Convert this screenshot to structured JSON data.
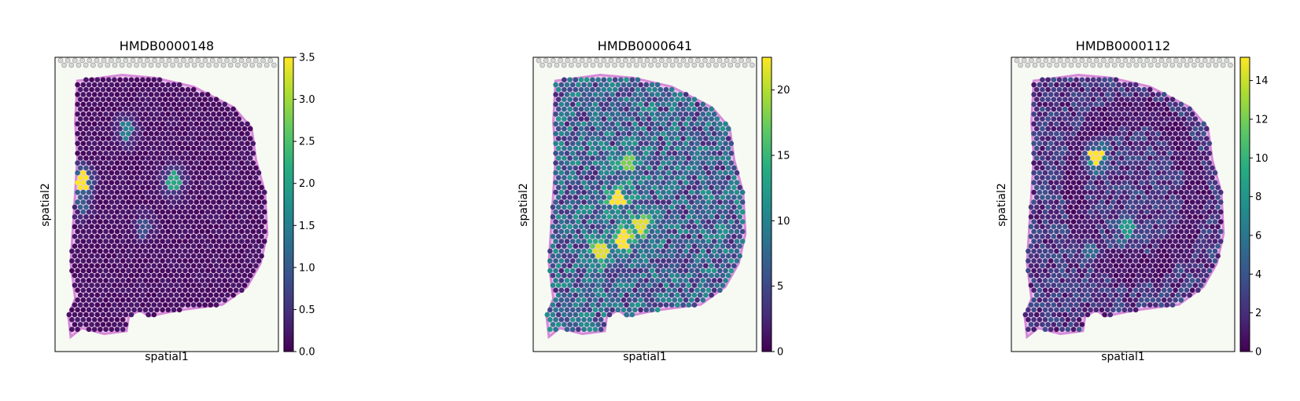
{
  "chart_data": [
    {
      "type": "heatmap",
      "title": "HMDB0000148",
      "xlabel": "spatial1",
      "ylabel": "spatial2",
      "colormap": "viridis",
      "colorbar": {
        "range": [
          0,
          3.5
        ],
        "ticks": [
          "0.0",
          "0.5",
          "1.0",
          "1.5",
          "2.0",
          "2.5",
          "3.0",
          "3.5"
        ]
      },
      "hotspots": [
        [
          0.12,
          0.42,
          1.0
        ],
        [
          0.53,
          0.42,
          0.6
        ],
        [
          0.32,
          0.25,
          0.45
        ],
        [
          0.12,
          0.5,
          0.3
        ],
        [
          0.4,
          0.58,
          0.25
        ]
      ]
    },
    {
      "type": "heatmap",
      "title": "HMDB0000641",
      "xlabel": "spatial1",
      "ylabel": "spatial2",
      "colormap": "viridis",
      "colorbar": {
        "range": [
          0,
          22.5
        ],
        "ticks": [
          "0",
          "5",
          "10",
          "15",
          "20"
        ]
      },
      "hotspots": [
        [
          0.38,
          0.48,
          1.0
        ],
        [
          0.4,
          0.62,
          1.0
        ],
        [
          0.48,
          0.57,
          0.95
        ],
        [
          0.3,
          0.66,
          0.95
        ],
        [
          0.42,
          0.36,
          0.8
        ]
      ]
    },
    {
      "type": "heatmap",
      "title": "HMDB0000112",
      "xlabel": "spatial1",
      "ylabel": "spatial2",
      "colormap": "viridis",
      "colorbar": {
        "range": [
          0,
          15.2
        ],
        "ticks": [
          "0",
          "2",
          "4",
          "6",
          "8",
          "10",
          "12",
          "14"
        ]
      },
      "hotspots": [
        [
          0.38,
          0.34,
          1.0
        ],
        [
          0.52,
          0.58,
          0.55
        ],
        [
          0.35,
          0.66,
          0.35
        ]
      ]
    }
  ]
}
